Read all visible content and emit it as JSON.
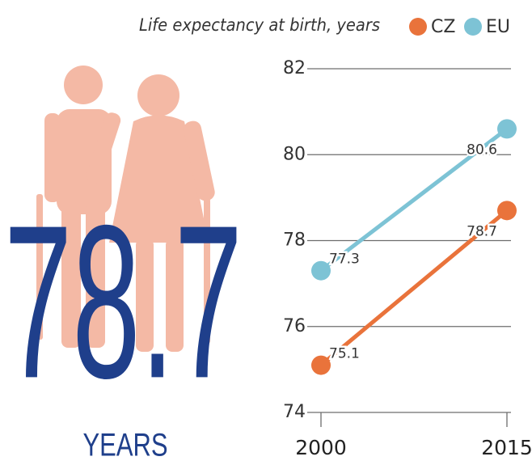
{
  "chart_data": {
    "type": "line",
    "title": "Life expectancy at birth, years",
    "headline": "78.7",
    "headline_unit": "YEARS",
    "x": [
      2000,
      2015
    ],
    "xlim": [
      2000,
      2015
    ],
    "xticks": [
      2000,
      2015
    ],
    "ylim": [
      74,
      82
    ],
    "yticks": [
      74,
      76,
      78,
      80,
      82
    ],
    "grid": true,
    "series": [
      {
        "name": "CZ",
        "color": "#e9733b",
        "values": [
          75.1,
          78.7
        ]
      },
      {
        "name": "EU",
        "color": "#7dc3d5",
        "values": [
          77.3,
          80.6
        ]
      }
    ]
  }
}
